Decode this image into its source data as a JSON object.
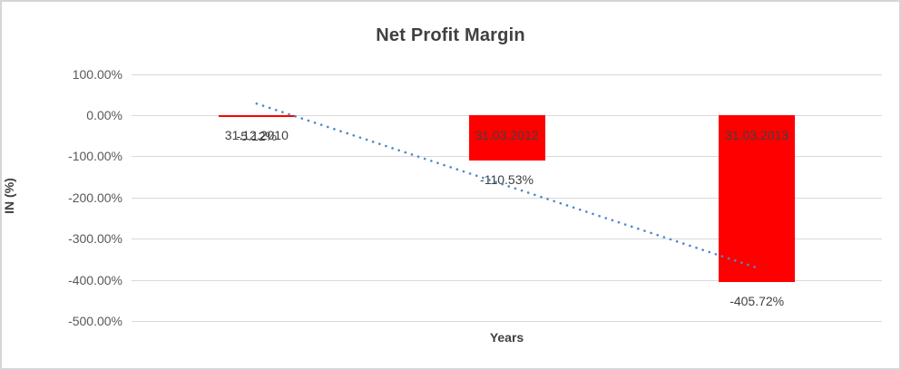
{
  "chart_data": {
    "type": "bar",
    "title": "Net Profit Margin",
    "xlabel": "Years",
    "ylabel": "IN (%)",
    "categories": [
      "31.12.2010",
      "31.03.2012",
      "31.03.2013"
    ],
    "values": [
      -5.12,
      -110.53,
      -405.72
    ],
    "data_labels": [
      "-5.12%",
      "-110.53%",
      "-405.72%"
    ],
    "series_name": "Net Profit Margin",
    "bar_color": "#ff0000",
    "label_color": "#404040",
    "ylim": [
      -500,
      100
    ],
    "yticks": [
      {
        "value": 100,
        "label": "100.00%"
      },
      {
        "value": 0,
        "label": "0.00%"
      },
      {
        "value": -100,
        "label": "-100.00%"
      },
      {
        "value": -200,
        "label": "-200.00%"
      },
      {
        "value": -300,
        "label": "-300.00%"
      },
      {
        "value": -400,
        "label": "-400.00%"
      },
      {
        "value": -500,
        "label": "-500.00%"
      }
    ],
    "grid": "horizontal",
    "legend": "none",
    "trendline": {
      "type": "linear",
      "style": "dotted",
      "color": "#4e8ac8",
      "start_pct": 28,
      "end_pct": -370
    }
  }
}
